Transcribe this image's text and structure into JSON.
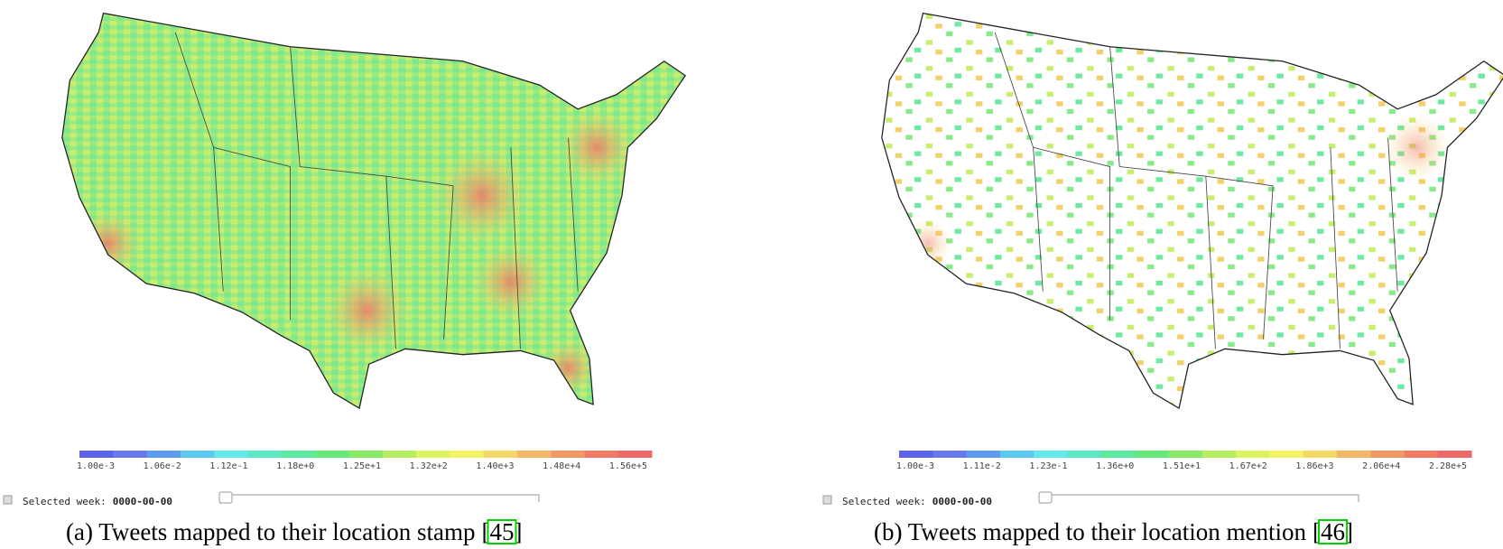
{
  "panels": [
    {
      "colorbar": {
        "colors": [
          "#5b63e8",
          "#6a78ee",
          "#5b9cef",
          "#5cc7f0",
          "#63e8ee",
          "#5ce8c4",
          "#5ee8a0",
          "#66e87a",
          "#86ea66",
          "#b6ee62",
          "#dcf262",
          "#f4f266",
          "#f4d868",
          "#f2b868",
          "#f29a66",
          "#f07c66",
          "#ee6868"
        ],
        "labels": [
          "1.00e-3",
          "1.06e-2",
          "1.12e-1",
          "1.18e+0",
          "1.25e+1",
          "1.32e+2",
          "1.40e+3",
          "1.48e+4",
          "1.56e+5"
        ]
      },
      "week_label": "Selected week:",
      "week": "0000-00-00",
      "caption": {
        "text": "(a) Tweets mapped to their location stamp",
        "citation": "[45]"
      }
    },
    {
      "colorbar": {
        "colors": [
          "#5b63e8",
          "#6a78ee",
          "#5b9cef",
          "#5cc7f0",
          "#63e8ee",
          "#5ce8c4",
          "#5ee8a0",
          "#66e87a",
          "#86ea66",
          "#b6ee62",
          "#dcf262",
          "#f4f266",
          "#f4d868",
          "#f2b868",
          "#f29a66",
          "#f07c66",
          "#ee6868"
        ],
        "labels": [
          "1.00e-3",
          "1.11e-2",
          "1.23e-1",
          "1.36e+0",
          "1.51e+1",
          "1.67e+2",
          "1.86e+3",
          "2.06e+4",
          "2.28e+5"
        ]
      },
      "week_label": "Selected week:",
      "week": "0000-00-00",
      "caption": {
        "text": "(b) Tweets mapped to their location mention",
        "citation": "[46]"
      }
    }
  ]
}
